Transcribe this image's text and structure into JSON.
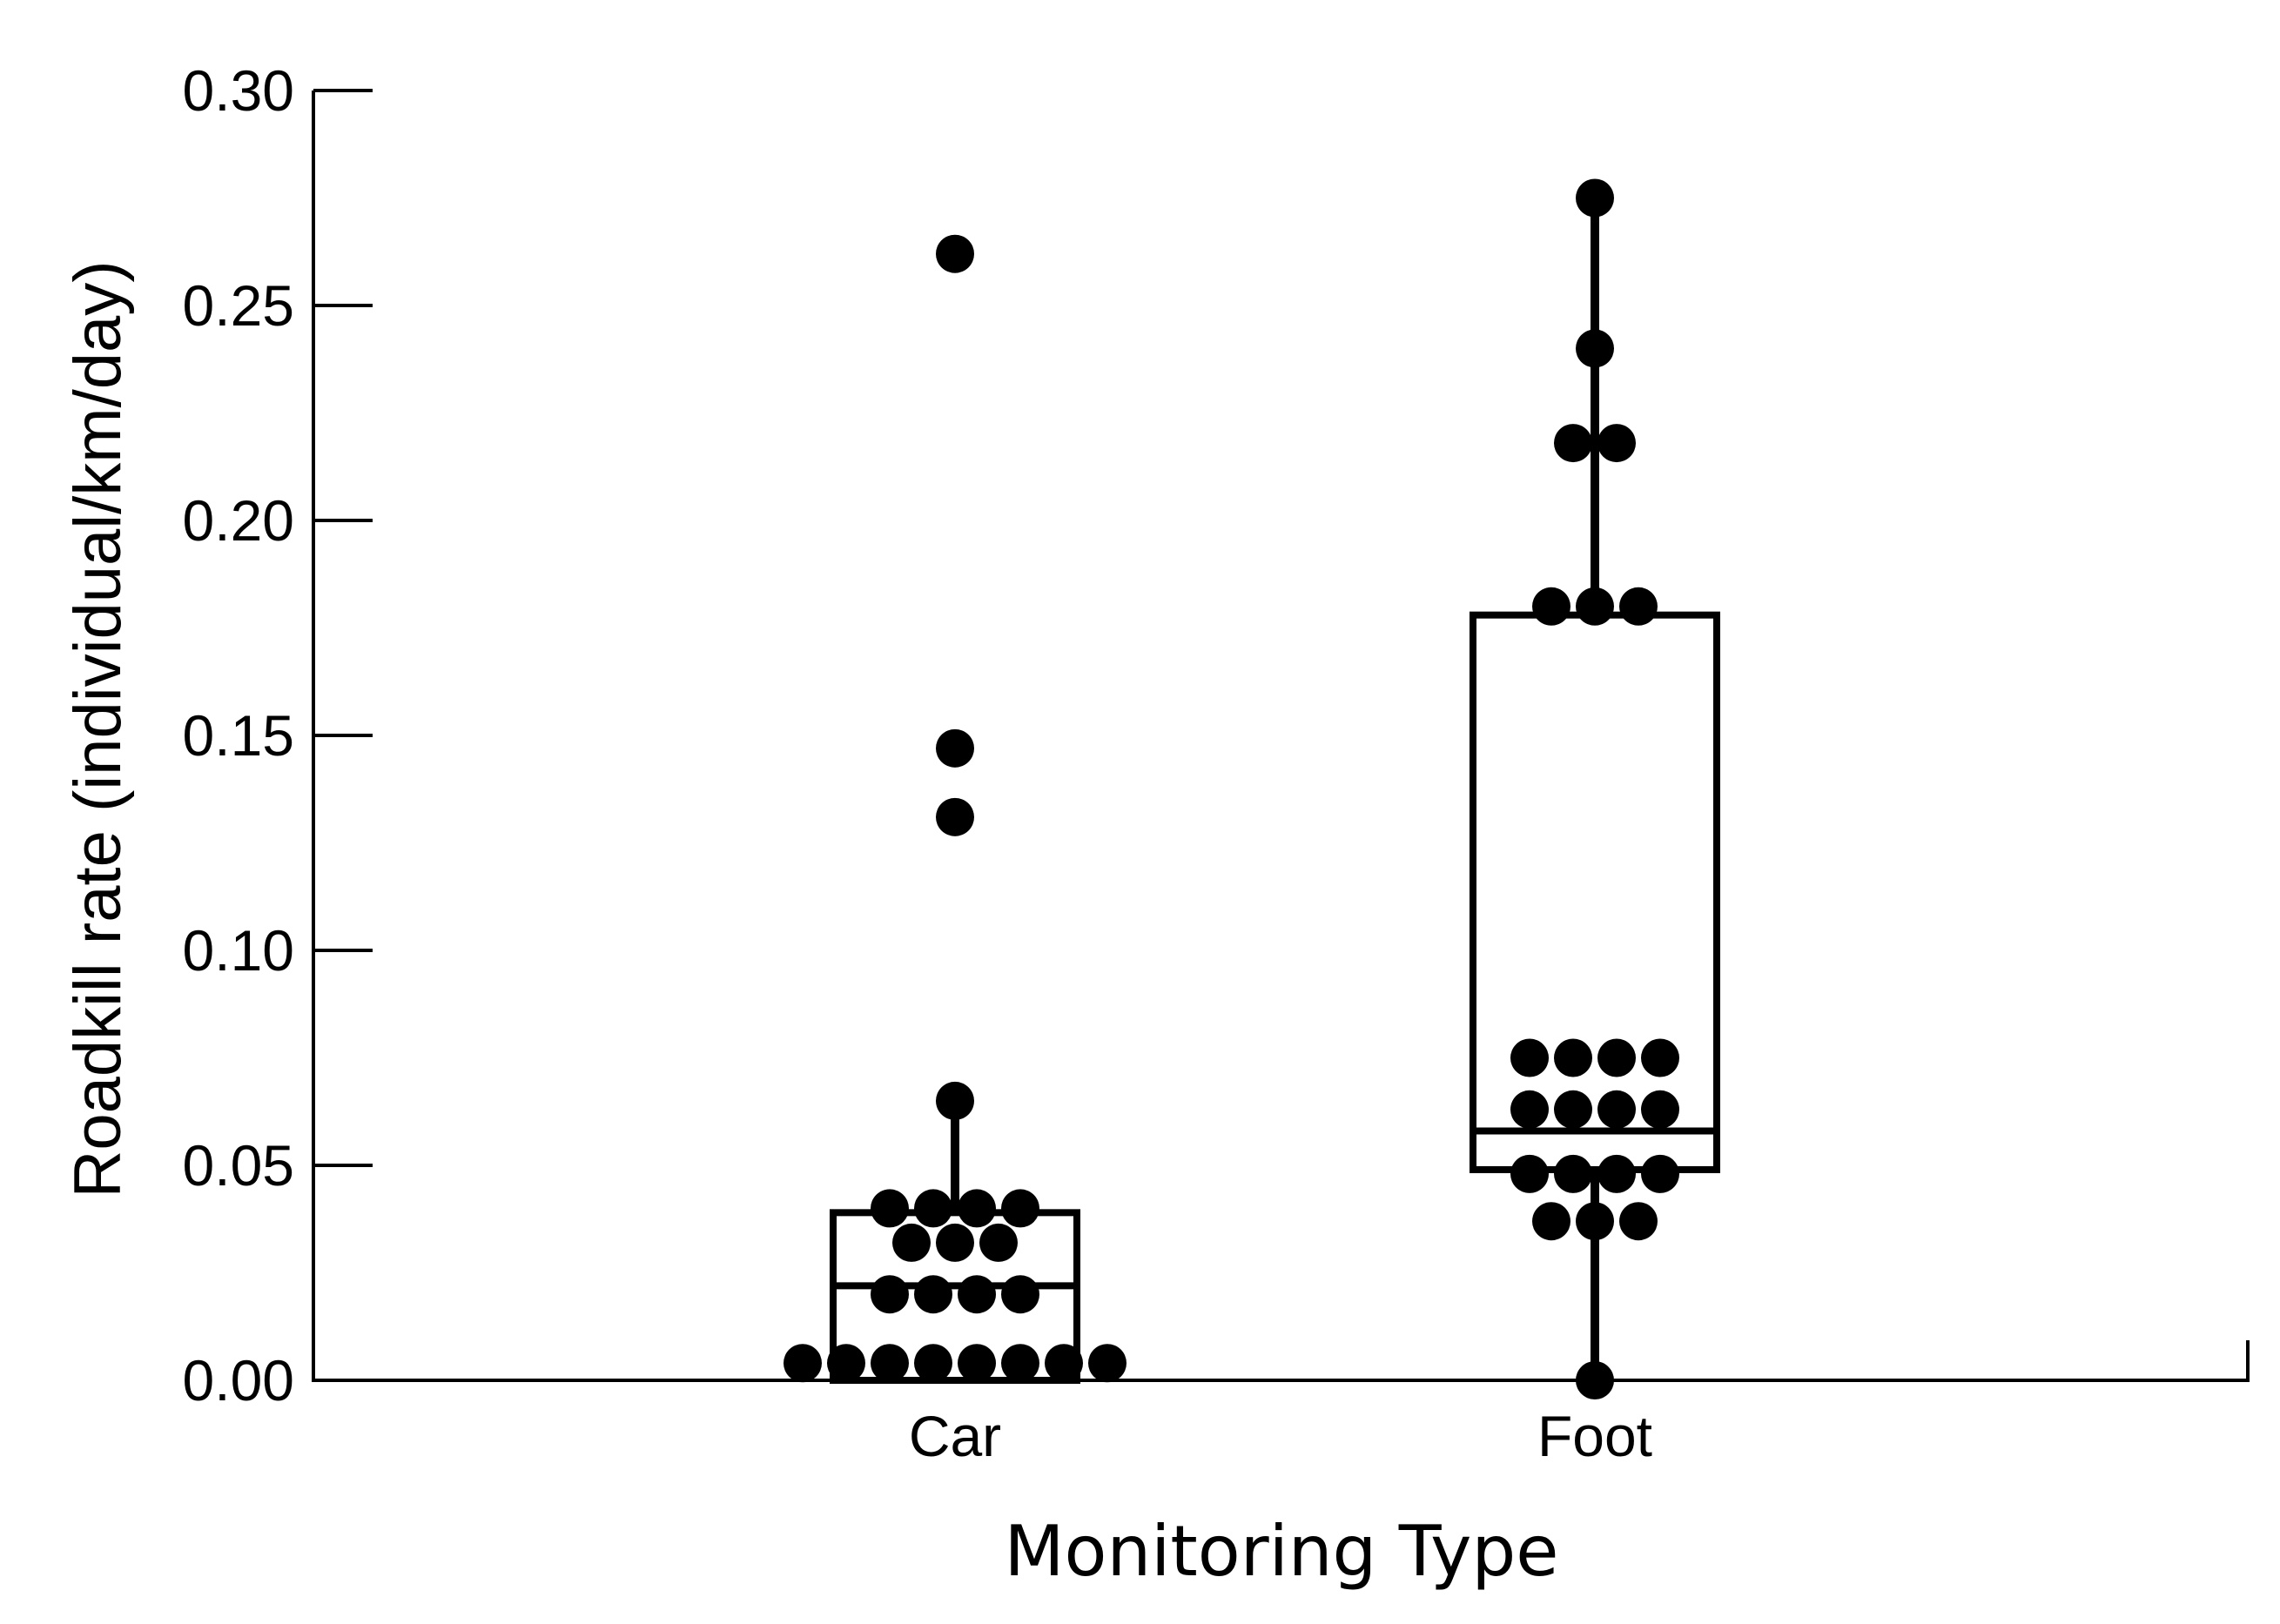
{
  "chart_data": {
    "type": "box",
    "title": "",
    "xlabel": "Monitoring Type",
    "ylabel": "Roadkill rate (individual/km/day)",
    "ylim": [
      0,
      0.3
    ],
    "yticks": [
      "0.00",
      "0.05",
      "0.10",
      "0.15",
      "0.20",
      "0.25",
      "0.30"
    ],
    "categories": [
      "Car",
      "Foot"
    ],
    "grid": false,
    "color": "#000000",
    "boxes": [
      {
        "category": "Car",
        "q1": 0.0,
        "median": 0.022,
        "q3": 0.039,
        "whisker_low": 0.0,
        "whisker_high": 0.065,
        "points": [
          {
            "x": 0,
            "y": 0.262
          },
          {
            "x": 0,
            "y": 0.147
          },
          {
            "x": 0,
            "y": 0.131
          },
          {
            "x": 0,
            "y": 0.065
          },
          {
            "x": -1.5,
            "y": 0.04
          },
          {
            "x": -0.5,
            "y": 0.04
          },
          {
            "x": 0.5,
            "y": 0.04
          },
          {
            "x": 1.5,
            "y": 0.04
          },
          {
            "x": -1,
            "y": 0.032
          },
          {
            "x": 0,
            "y": 0.032
          },
          {
            "x": 1,
            "y": 0.032
          },
          {
            "x": -1.5,
            "y": 0.02
          },
          {
            "x": -0.5,
            "y": 0.02
          },
          {
            "x": 0.5,
            "y": 0.02
          },
          {
            "x": 1.5,
            "y": 0.02
          },
          {
            "x": -3.5,
            "y": 0.004
          },
          {
            "x": -2.5,
            "y": 0.004
          },
          {
            "x": -1.5,
            "y": 0.004
          },
          {
            "x": -0.5,
            "y": 0.004
          },
          {
            "x": 0.5,
            "y": 0.004
          },
          {
            "x": 1.5,
            "y": 0.004
          },
          {
            "x": 2.5,
            "y": 0.004
          },
          {
            "x": 3.5,
            "y": 0.004
          }
        ]
      },
      {
        "category": "Foot",
        "q1": 0.049,
        "median": 0.058,
        "q3": 0.178,
        "whisker_low": 0.0,
        "whisker_high": 0.274,
        "points": [
          {
            "x": 0,
            "y": 0.275
          },
          {
            "x": 0,
            "y": 0.24
          },
          {
            "x": -0.5,
            "y": 0.218
          },
          {
            "x": 0.5,
            "y": 0.218
          },
          {
            "x": -1,
            "y": 0.18
          },
          {
            "x": 0,
            "y": 0.18
          },
          {
            "x": 1,
            "y": 0.18
          },
          {
            "x": -1.5,
            "y": 0.075
          },
          {
            "x": -0.5,
            "y": 0.075
          },
          {
            "x": 0.5,
            "y": 0.075
          },
          {
            "x": 1.5,
            "y": 0.075
          },
          {
            "x": -1.5,
            "y": 0.063
          },
          {
            "x": -0.5,
            "y": 0.063
          },
          {
            "x": 0.5,
            "y": 0.063
          },
          {
            "x": 1.5,
            "y": 0.063
          },
          {
            "x": -1.5,
            "y": 0.048
          },
          {
            "x": -0.5,
            "y": 0.048
          },
          {
            "x": 0.5,
            "y": 0.048
          },
          {
            "x": 1.5,
            "y": 0.048
          },
          {
            "x": -1,
            "y": 0.037
          },
          {
            "x": 0,
            "y": 0.037
          },
          {
            "x": 1,
            "y": 0.037
          },
          {
            "x": 0,
            "y": 0.0
          }
        ]
      }
    ]
  }
}
